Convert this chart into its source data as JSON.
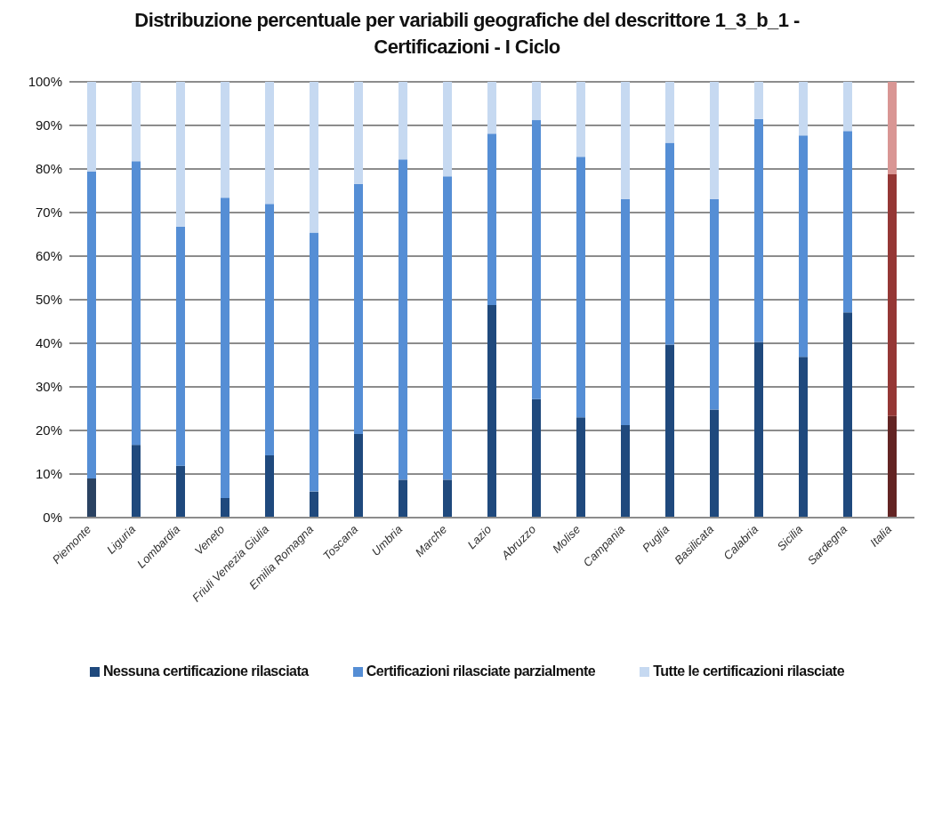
{
  "chart_data": {
    "type": "bar",
    "title": "Distribuzione percentuale per variabili geografiche del descrittore 1_3_b_1 - Certificazioni - I Ciclo",
    "categories": [
      "Piemonte",
      "Liguria",
      "Lombardia",
      "Veneto",
      "Friuli Venezia Giulia",
      "Emilia Romagna",
      "Toscana",
      "Umbria",
      "Marche",
      "Lazio",
      "Abruzzo",
      "Molise",
      "Campania",
      "Puglia",
      "Basilicata",
      "Calabria",
      "Sicilia",
      "Sardegna",
      "Italia"
    ],
    "stacked": true,
    "series": [
      {
        "name": "Nessuna certificazione rilasciata",
        "color": "#1f497d",
        "colors": [
          "#2a4262",
          "#1f497d",
          "#1f497d",
          "#1f497d",
          "#1f497d",
          "#1f497d",
          "#1f497d",
          "#1f497d",
          "#1f497d",
          "#1f497d",
          "#1f497d",
          "#1f497d",
          "#1f497d",
          "#1f497d",
          "#1f497d",
          "#1f497d",
          "#1f497d",
          "#1f497d",
          "#632423"
        ],
        "values": [
          9.0,
          16.7,
          11.9,
          4.5,
          14.3,
          6.0,
          19.2,
          8.7,
          8.7,
          48.8,
          27.2,
          23.0,
          21.2,
          39.7,
          24.8,
          40.3,
          36.9,
          47.1,
          23.3
        ]
      },
      {
        "name": "Certificazioni rilasciate parzialmente",
        "color": "#558ed5",
        "colors": [
          "#558ed5",
          "#558ed5",
          "#558ed5",
          "#558ed5",
          "#558ed5",
          "#558ed5",
          "#558ed5",
          "#558ed5",
          "#558ed5",
          "#558ed5",
          "#558ed5",
          "#558ed5",
          "#558ed5",
          "#558ed5",
          "#558ed5",
          "#558ed5",
          "#558ed5",
          "#558ed5",
          "#953735"
        ],
        "values": [
          70.4,
          65.1,
          54.9,
          68.9,
          57.7,
          59.4,
          57.4,
          73.5,
          69.6,
          39.3,
          64.0,
          59.8,
          51.9,
          46.3,
          48.3,
          51.2,
          50.8,
          41.6,
          55.5
        ]
      },
      {
        "name": "Tutte le certificazioni rilasciate",
        "color": "#c6d9f1",
        "colors": [
          "#c6d9f1",
          "#c6d9f1",
          "#c6d9f1",
          "#c6d9f1",
          "#c6d9f1",
          "#c6d9f1",
          "#c6d9f1",
          "#c6d9f1",
          "#c6d9f1",
          "#c6d9f1",
          "#c6d9f1",
          "#c6d9f1",
          "#c6d9f1",
          "#c6d9f1",
          "#c6d9f1",
          "#c6d9f1",
          "#c6d9f1",
          "#c6d9f1",
          "#d99694"
        ],
        "values": [
          20.6,
          18.2,
          33.2,
          26.6,
          28.0,
          34.6,
          23.4,
          17.8,
          21.7,
          11.9,
          8.8,
          17.2,
          26.9,
          14.0,
          26.9,
          8.5,
          12.3,
          11.3,
          21.2
        ]
      }
    ],
    "ylim": [
      0,
      100
    ],
    "yticks": [
      {
        "value": 0,
        "label": "0%"
      },
      {
        "value": 10,
        "label": "10%"
      },
      {
        "value": 20,
        "label": "20%"
      },
      {
        "value": 30,
        "label": "30%"
      },
      {
        "value": 40,
        "label": "40%"
      },
      {
        "value": 50,
        "label": "50%"
      },
      {
        "value": 60,
        "label": "60%"
      },
      {
        "value": 70,
        "label": "70%"
      },
      {
        "value": 80,
        "label": "80%"
      },
      {
        "value": 90,
        "label": "90%"
      },
      {
        "value": 100,
        "label": "100%"
      }
    ],
    "grid": "y",
    "legend": "bottom"
  }
}
